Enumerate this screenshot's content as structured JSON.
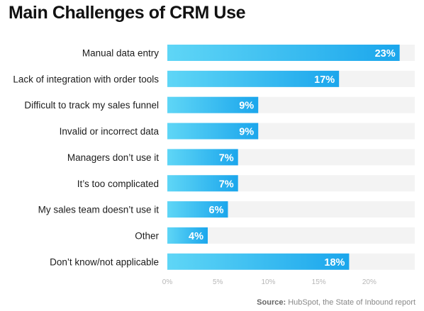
{
  "title": "Main Challenges of CRM Use",
  "source": {
    "label": "Source:",
    "text": "HubSpot, the State of Inbound report"
  },
  "colors": {
    "bar_start": "#5fd6f6",
    "bar_end": "#1ba6ec",
    "track": "#f3f3f3",
    "value_text": "#ffffff"
  },
  "chart_data": {
    "type": "bar",
    "orientation": "horizontal",
    "title": "Main Challenges of CRM Use",
    "categories": [
      "Manual data entry",
      "Lack of integration with order tools",
      "Difficult to track my sales funnel",
      "Invalid or incorrect data",
      "Managers don’t use it",
      "It’s too complicated",
      "My sales team doesn’t use it",
      "Other",
      "Don’t know/not applicable"
    ],
    "values": [
      23,
      17,
      9,
      9,
      7,
      7,
      6,
      4,
      18
    ],
    "value_labels": [
      "23%",
      "17%",
      "9%",
      "9%",
      "7%",
      "7%",
      "6%",
      "4%",
      "18%"
    ],
    "xticks": [
      0,
      5,
      10,
      15,
      20
    ],
    "xtick_labels": [
      "0%",
      "5%",
      "10%",
      "15%",
      "20%"
    ],
    "xlim": [
      0,
      24.5
    ],
    "xlabel": "",
    "ylabel": "",
    "grid": false,
    "legend": "none"
  }
}
